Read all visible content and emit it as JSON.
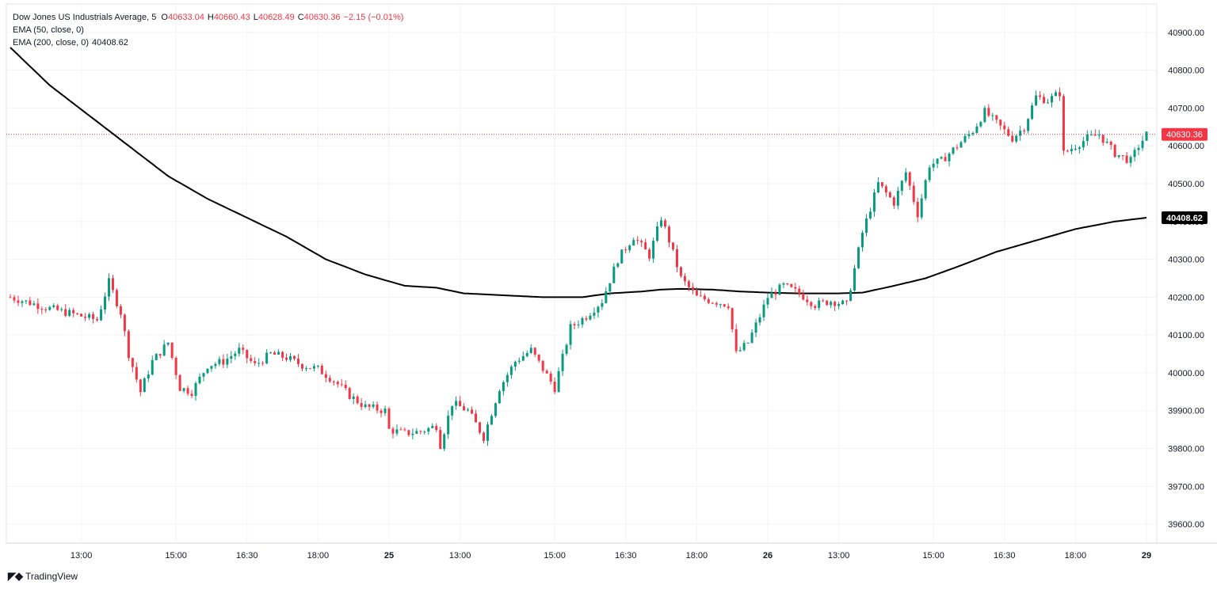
{
  "legend": {
    "symbol": "Dow Jones US Industrials Average, 5",
    "open_key": "O",
    "open": "40633.04",
    "high_key": "H",
    "high": "40660.43",
    "low_key": "L",
    "low": "40628.49",
    "close_key": "C",
    "close": "40630.36",
    "change": "−2.15 (−0.01%)",
    "ema50": "EMA (50, close, 0)",
    "ema200": "EMA (200, close, 0)",
    "ema200_value": "40408.62"
  },
  "brand": {
    "name": "TradingView"
  },
  "colors": {
    "up": "#089981",
    "down": "#f23645",
    "ema": "#000000",
    "grid": "#f0f3fa",
    "price_line": "#f23645"
  },
  "chart_data": {
    "type": "candlestick",
    "ylim": [
      39550,
      40975
    ],
    "y_ticks": [
      39600,
      39700,
      39800,
      39900,
      40000,
      40100,
      40200,
      40300,
      40400,
      40500,
      40600,
      40700,
      40800,
      40900
    ],
    "y_tick_labels": [
      "39600.00",
      "39700.00",
      "39800.00",
      "39900.00",
      "40000.00",
      "40100.00",
      "40200.00",
      "40300.00",
      "40400.00",
      "40500.00",
      "40600.00",
      "40700.00",
      "40800.00",
      "40900.00"
    ],
    "x_ticks": [
      {
        "label": "13:00",
        "bar": 18,
        "bold": false
      },
      {
        "label": "15:00",
        "bar": 42,
        "bold": false
      },
      {
        "label": "16:30",
        "bar": 60,
        "bold": false
      },
      {
        "label": "18:00",
        "bar": 78,
        "bold": false
      },
      {
        "label": "25",
        "bar": 96,
        "bold": true
      },
      {
        "label": "13:00",
        "bar": 114,
        "bold": false
      },
      {
        "label": "15:00",
        "bar": 138,
        "bold": false
      },
      {
        "label": "16:30",
        "bar": 156,
        "bold": false
      },
      {
        "label": "18:00",
        "bar": 174,
        "bold": false
      },
      {
        "label": "26",
        "bar": 192,
        "bold": true
      },
      {
        "label": "13:00",
        "bar": 210,
        "bold": false
      },
      {
        "label": "15:00",
        "bar": 234,
        "bold": false
      },
      {
        "label": "16:30",
        "bar": 252,
        "bold": false
      },
      {
        "label": "18:00",
        "bar": 270,
        "bold": false
      },
      {
        "label": "29",
        "bar": 288,
        "bold": true
      }
    ],
    "bars_total": 289,
    "current_price": 40630.36,
    "current_price_label": "40630.36",
    "ema200_label": "40408.62",
    "close_path": [
      [
        0,
        40200
      ],
      [
        10,
        40170
      ],
      [
        18,
        40150
      ],
      [
        22,
        40140
      ],
      [
        25,
        40240
      ],
      [
        28,
        40160
      ],
      [
        30,
        40050
      ],
      [
        33,
        39950
      ],
      [
        36,
        40030
      ],
      [
        40,
        40080
      ],
      [
        43,
        39960
      ],
      [
        46,
        39950
      ],
      [
        50,
        40020
      ],
      [
        54,
        40030
      ],
      [
        58,
        40060
      ],
      [
        62,
        40020
      ],
      [
        66,
        40050
      ],
      [
        70,
        40040
      ],
      [
        74,
        40020
      ],
      [
        78,
        40010
      ],
      [
        82,
        39980
      ],
      [
        86,
        39940
      ],
      [
        90,
        39910
      ],
      [
        95,
        39900
      ],
      [
        96,
        39850
      ],
      [
        100,
        39840
      ],
      [
        104,
        39845
      ],
      [
        108,
        39860
      ],
      [
        109,
        39810
      ],
      [
        112,
        39920
      ],
      [
        116,
        39900
      ],
      [
        120,
        39830
      ],
      [
        124,
        39960
      ],
      [
        128,
        40030
      ],
      [
        132,
        40060
      ],
      [
        135,
        40010
      ],
      [
        138,
        39960
      ],
      [
        142,
        40120
      ],
      [
        146,
        40150
      ],
      [
        150,
        40190
      ],
      [
        154,
        40300
      ],
      [
        158,
        40360
      ],
      [
        162,
        40310
      ],
      [
        165,
        40410
      ],
      [
        167,
        40350
      ],
      [
        170,
        40250
      ],
      [
        174,
        40200
      ],
      [
        178,
        40190
      ],
      [
        182,
        40180
      ],
      [
        184,
        40050
      ],
      [
        187,
        40080
      ],
      [
        190,
        40150
      ],
      [
        192,
        40200
      ],
      [
        196,
        40230
      ],
      [
        200,
        40210
      ],
      [
        204,
        40180
      ],
      [
        208,
        40190
      ],
      [
        212,
        40180
      ],
      [
        216,
        40370
      ],
      [
        220,
        40500
      ],
      [
        224,
        40450
      ],
      [
        227,
        40530
      ],
      [
        230,
        40420
      ],
      [
        233,
        40550
      ],
      [
        236,
        40560
      ],
      [
        240,
        40600
      ],
      [
        244,
        40640
      ],
      [
        247,
        40690
      ],
      [
        250,
        40660
      ],
      [
        254,
        40620
      ],
      [
        257,
        40650
      ],
      [
        260,
        40730
      ],
      [
        263,
        40720
      ],
      [
        266,
        40740
      ],
      [
        267,
        40580
      ],
      [
        270,
        40600
      ],
      [
        273,
        40620
      ],
      [
        276,
        40630
      ],
      [
        280,
        40580
      ],
      [
        284,
        40560
      ],
      [
        286,
        40600
      ],
      [
        288,
        40630
      ]
    ],
    "ema200_path": [
      [
        0,
        40860
      ],
      [
        10,
        40760
      ],
      [
        20,
        40680
      ],
      [
        30,
        40600
      ],
      [
        40,
        40520
      ],
      [
        50,
        40460
      ],
      [
        60,
        40410
      ],
      [
        70,
        40360
      ],
      [
        80,
        40300
      ],
      [
        90,
        40260
      ],
      [
        100,
        40230
      ],
      [
        108,
        40225
      ],
      [
        115,
        40210
      ],
      [
        125,
        40205
      ],
      [
        135,
        40200
      ],
      [
        145,
        40200
      ],
      [
        152,
        40210
      ],
      [
        160,
        40215
      ],
      [
        165,
        40220
      ],
      [
        170,
        40222
      ],
      [
        178,
        40220
      ],
      [
        185,
        40215
      ],
      [
        192,
        40212
      ],
      [
        200,
        40210
      ],
      [
        210,
        40210
      ],
      [
        216,
        40212
      ],
      [
        224,
        40230
      ],
      [
        232,
        40250
      ],
      [
        240,
        40280
      ],
      [
        250,
        40320
      ],
      [
        260,
        40350
      ],
      [
        270,
        40380
      ],
      [
        280,
        40400
      ],
      [
        288,
        40410
      ]
    ]
  }
}
